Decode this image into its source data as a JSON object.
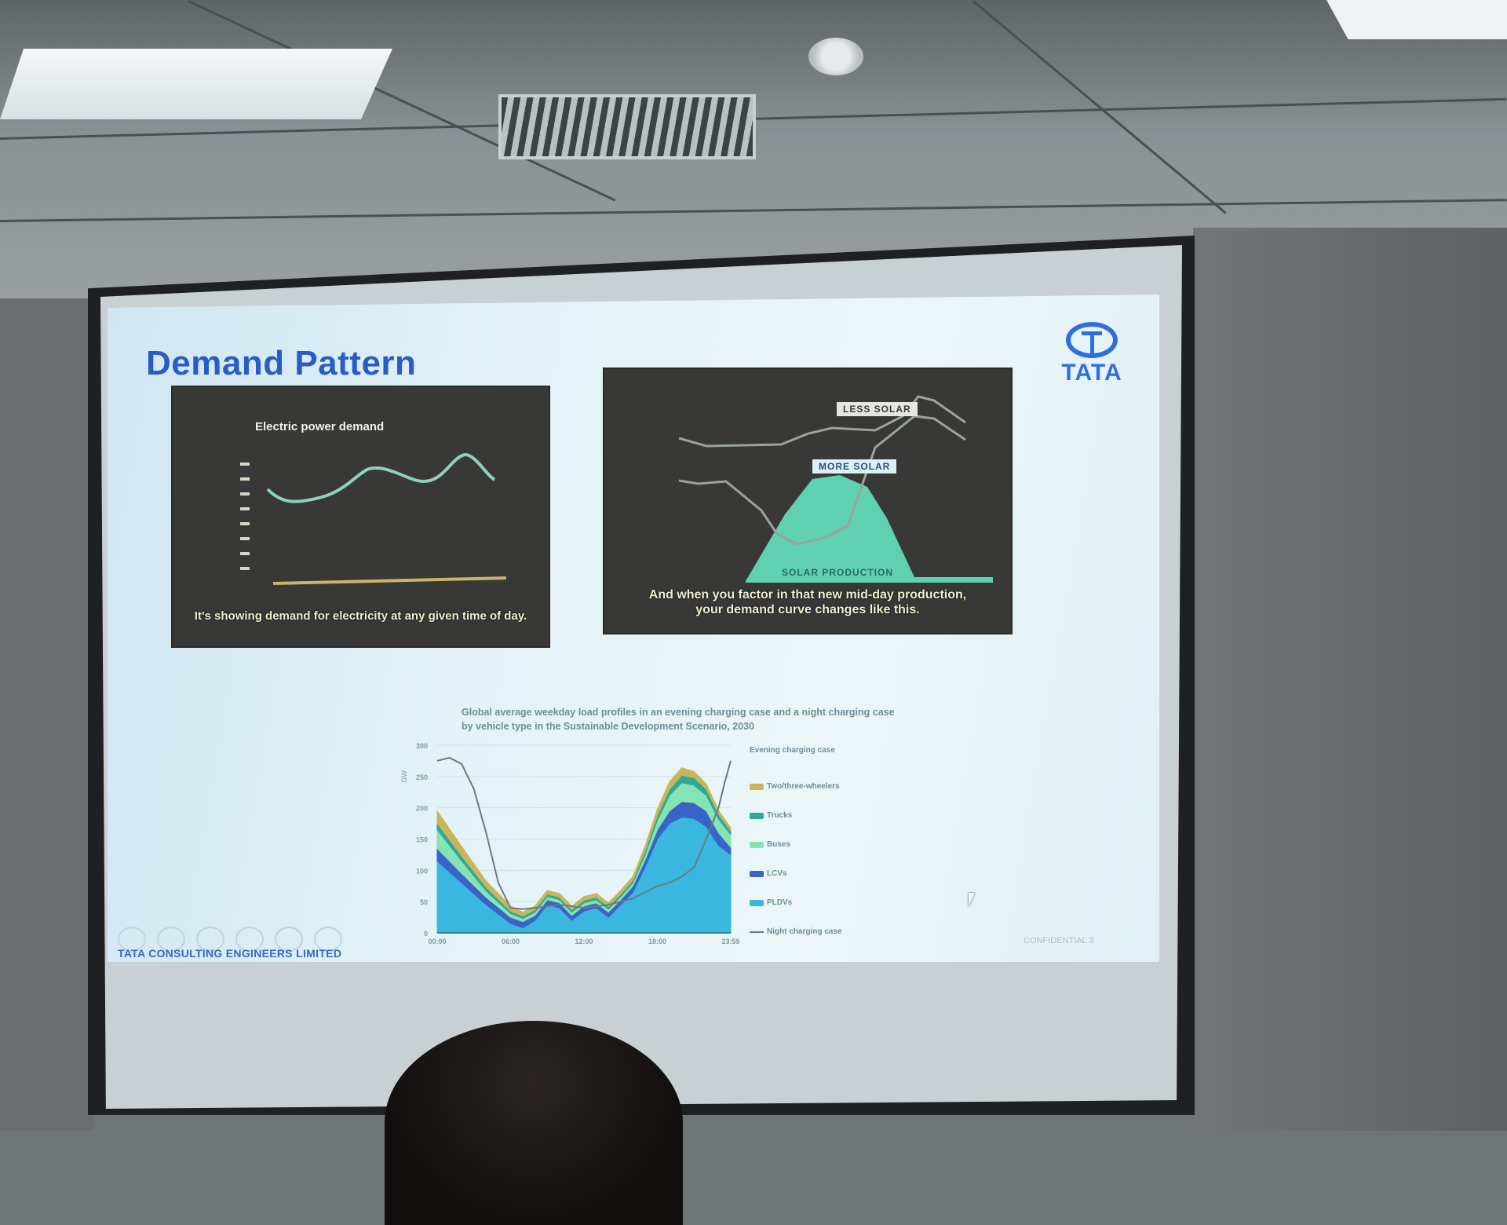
{
  "slide": {
    "title": "Demand Pattern",
    "logo": "TATA",
    "footer_company": "TATA CONSULTING ENGINEERS LIMITED",
    "footer_confidential": "CONFIDENTIAL  3"
  },
  "left_image": {
    "title": "Electric power demand",
    "caption": "It's showing demand for electricity at any given time of day."
  },
  "right_image": {
    "label_less": "LESS SOLAR",
    "label_more": "MORE SOLAR",
    "label_production": "SOLAR PRODUCTION",
    "caption_line1": "And when you factor in that new mid-day production,",
    "caption_line2": "your demand curve changes like this."
  },
  "chart_data": {
    "type": "area",
    "title": "Global average weekday load profiles in an evening charging case and a night charging case by vehicle type in the Sustainable Development Scenario, 2030",
    "ylabel": "GW",
    "ylim": [
      0,
      300
    ],
    "yticks": [
      "0",
      "50",
      "100",
      "150",
      "200",
      "250",
      "300"
    ],
    "xticks": [
      "00:00",
      "06:00",
      "12:00",
      "18:00",
      "23:59"
    ],
    "xlim": [
      0,
      24
    ],
    "legend_title": "Evening charging case",
    "legend_placement": "right",
    "x": [
      0,
      2,
      4,
      6,
      7,
      8,
      9,
      10,
      11,
      12,
      13,
      14,
      15,
      16,
      17,
      18,
      19,
      20,
      21,
      22,
      23,
      24
    ],
    "series": [
      {
        "name": "PLDVs",
        "color": "#3ab7e0",
        "values": [
          115,
          80,
          45,
          15,
          8,
          20,
          45,
          40,
          20,
          35,
          40,
          25,
          45,
          65,
          105,
          150,
          175,
          185,
          183,
          170,
          140,
          125
        ]
      },
      {
        "name": "LCVs",
        "color": "#3a63c8",
        "values": [
          20,
          15,
          12,
          10,
          10,
          8,
          8,
          8,
          8,
          8,
          8,
          8,
          8,
          10,
          12,
          15,
          20,
          25,
          25,
          25,
          20,
          12
        ]
      },
      {
        "name": "Buses",
        "color": "#86e3b4",
        "values": [
          30,
          20,
          10,
          6,
          5,
          5,
          5,
          5,
          5,
          5,
          5,
          5,
          5,
          5,
          8,
          15,
          25,
          30,
          28,
          25,
          22,
          20
        ]
      },
      {
        "name": "Trucks",
        "color": "#2fa896",
        "values": [
          10,
          8,
          6,
          4,
          4,
          4,
          4,
          4,
          4,
          4,
          4,
          4,
          4,
          4,
          6,
          8,
          10,
          12,
          12,
          10,
          8,
          6
        ]
      },
      {
        "name": "Two/three-wheelers",
        "color": "#c9b55a",
        "values": [
          20,
          15,
          10,
          8,
          6,
          6,
          6,
          6,
          6,
          6,
          6,
          6,
          6,
          6,
          8,
          10,
          12,
          12,
          10,
          8,
          6,
          5
        ]
      }
    ],
    "line": {
      "name": "Night charging case",
      "color": "#6b7b80",
      "x": [
        0,
        1,
        2,
        3,
        4,
        5,
        6,
        7,
        8,
        10,
        12,
        14,
        16,
        17,
        18,
        19,
        20,
        21,
        22,
        23,
        23.5,
        24
      ],
      "values": [
        275,
        280,
        270,
        230,
        160,
        80,
        40,
        38,
        40,
        45,
        40,
        45,
        55,
        65,
        75,
        80,
        90,
        105,
        150,
        200,
        240,
        275
      ]
    }
  }
}
